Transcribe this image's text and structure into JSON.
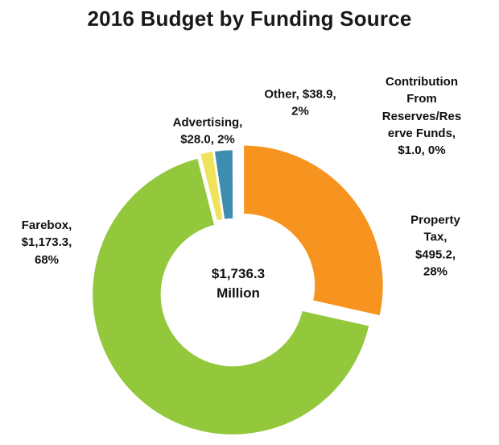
{
  "chart_data": {
    "type": "pie",
    "subtype": "donut",
    "title": "2016 Budget by Funding Source",
    "units": "$ Million",
    "legend": "none",
    "center_total": {
      "value": 1736.3,
      "label": "$1,736.3\nMillion"
    },
    "slices": [
      {
        "name": "Advertising",
        "value": 28.0,
        "pct_label": "2%",
        "color": "#EEE35A",
        "callout": "Advertising,\n$28.0, 2%"
      },
      {
        "name": "Other",
        "value": 38.9,
        "pct_label": "2%",
        "color": "#3C8DB0",
        "callout": "Other, $38.9,\n2%"
      },
      {
        "name": "Contribution From Reserves/Reserve Funds",
        "value": 1.0,
        "pct_label": "0%",
        "color": "#FFFFFF",
        "callout": "Contribution\nFrom\nReserves/Res\nerve Funds,\n$1.0, 0%"
      },
      {
        "name": "Property Tax",
        "value": 495.2,
        "pct_label": "28%",
        "color": "#F6941F",
        "callout": "Property Tax,\n$495.2, 28%",
        "explode": 14
      },
      {
        "name": "Farebox",
        "value": 1173.3,
        "pct_label": "68%",
        "color": "#93C83D",
        "callout": "Farebox,\n$1,173.3,\n68%"
      }
    ],
    "start_offset_deg": -14.1,
    "clockwise": true
  }
}
